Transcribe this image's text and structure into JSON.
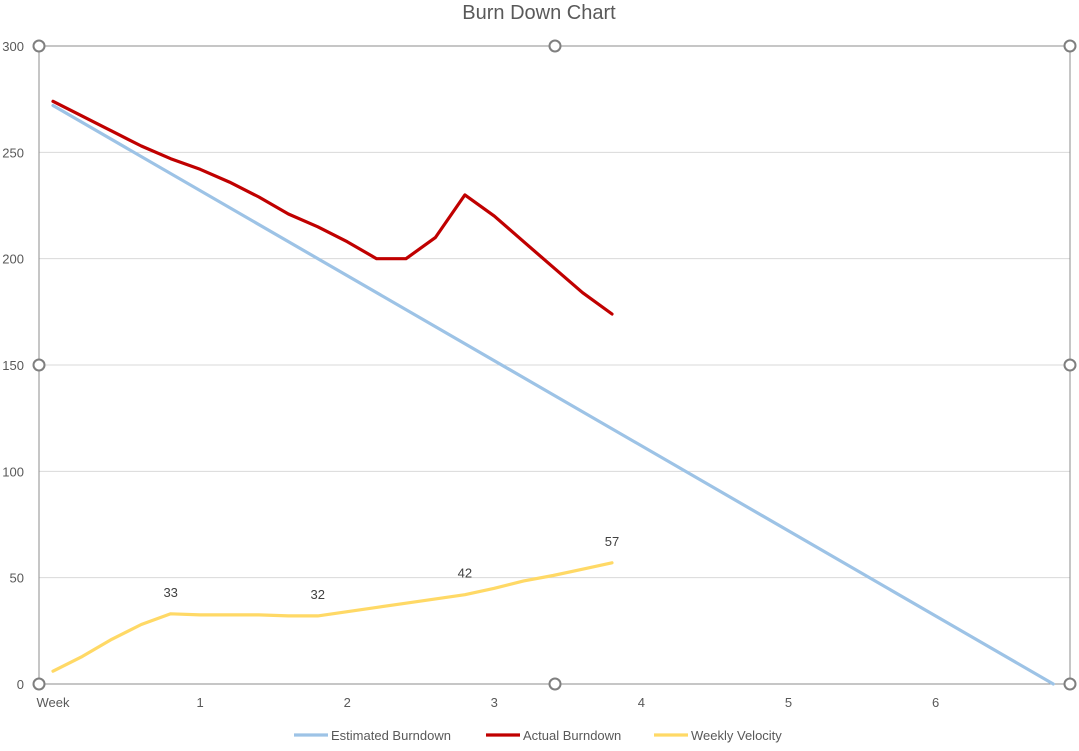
{
  "chart_data": {
    "type": "line",
    "title": "Burn Down Chart",
    "xlabel": "",
    "ylabel": "",
    "ylim": [
      0,
      300
    ],
    "yticks": [
      "0",
      "50",
      "100",
      "150",
      "200",
      "250",
      "300"
    ],
    "xlim": [
      -0.1,
      7.0
    ],
    "xticks": [
      {
        "x": 0,
        "label": "Week"
      },
      {
        "x": 1,
        "label": "1"
      },
      {
        "x": 2,
        "label": "2"
      },
      {
        "x": 3,
        "label": "3"
      },
      {
        "x": 4,
        "label": "4"
      },
      {
        "x": 5,
        "label": "5"
      },
      {
        "x": 6,
        "label": "6"
      }
    ],
    "grid": true,
    "legend": "bottom",
    "series": [
      {
        "name": "Estimated Burndown",
        "color": "#9DC3E6",
        "points": [
          [
            0,
            272
          ],
          [
            6.8,
            0
          ]
        ]
      },
      {
        "name": "Actual Burndown",
        "color": "#C00000",
        "points": [
          [
            0,
            274
          ],
          [
            0.2,
            267
          ],
          [
            0.4,
            260
          ],
          [
            0.6,
            253
          ],
          [
            0.8,
            247
          ],
          [
            1.0,
            242
          ],
          [
            1.2,
            236
          ],
          [
            1.4,
            229
          ],
          [
            1.6,
            221
          ],
          [
            1.8,
            215
          ],
          [
            2.0,
            208
          ],
          [
            2.2,
            200
          ],
          [
            2.4,
            200
          ],
          [
            2.6,
            210
          ],
          [
            2.8,
            230
          ],
          [
            3.0,
            220
          ],
          [
            3.2,
            208
          ],
          [
            3.4,
            196
          ],
          [
            3.6,
            184
          ],
          [
            3.8,
            174
          ]
        ]
      },
      {
        "name": "Weekly Velocity",
        "color": "#FFD966",
        "points": [
          [
            0,
            6
          ],
          [
            0.2,
            13
          ],
          [
            0.4,
            21
          ],
          [
            0.6,
            28
          ],
          [
            0.8,
            33
          ],
          [
            1.0,
            32.5
          ],
          [
            1.2,
            32.5
          ],
          [
            1.4,
            32.5
          ],
          [
            1.6,
            32
          ],
          [
            1.8,
            32
          ],
          [
            2.0,
            34
          ],
          [
            2.2,
            36
          ],
          [
            2.4,
            38
          ],
          [
            2.6,
            40
          ],
          [
            2.8,
            42
          ],
          [
            3.0,
            45
          ],
          [
            3.2,
            48.5
          ],
          [
            3.4,
            51
          ],
          [
            3.6,
            54
          ],
          [
            3.8,
            57
          ]
        ],
        "data_labels": [
          {
            "x": 0.8,
            "y": 33,
            "text": "33"
          },
          {
            "x": 1.8,
            "y": 32,
            "text": "32"
          },
          {
            "x": 2.8,
            "y": 42,
            "text": "42"
          },
          {
            "x": 3.8,
            "y": 57,
            "text": "57"
          }
        ]
      }
    ]
  }
}
